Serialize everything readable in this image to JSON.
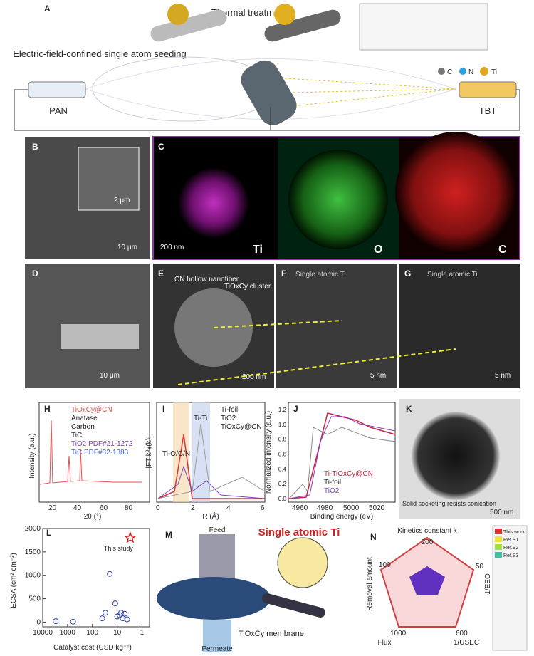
{
  "panel_a": {
    "label": "A",
    "process": "Thermal treatment",
    "seeding": "Electric-field-confined single atom seeding",
    "left_syringe": "PAN",
    "right_syringe": "TBT",
    "legend": [
      "C",
      "N",
      "Ti"
    ]
  },
  "panel_b": {
    "label": "B",
    "inset_scale": "2 μm",
    "scale": "10 μm"
  },
  "panel_c": {
    "label": "C",
    "scale": "200 nm",
    "maps": [
      "Ti",
      "O",
      "C"
    ]
  },
  "panel_d": {
    "label": "D",
    "scale": "10 μm"
  },
  "panel_e": {
    "label": "E",
    "annotations": [
      "CN hollow nanofiber",
      "TiOxCy cluster"
    ],
    "scale": "200 nm"
  },
  "panel_f": {
    "label": "F",
    "title": "Single atomic Ti",
    "scale": "5 nm"
  },
  "panel_g": {
    "label": "G",
    "title": "Single atomic Ti",
    "scale": "5 nm"
  },
  "panel_h": {
    "label": "H",
    "ylabel": "Intensity (a.u.)",
    "xlabel": "2θ (°)",
    "xticks": [
      "20",
      "40",
      "60",
      "80"
    ],
    "legend": [
      "TiOxCy@CN",
      "Anatase",
      "Carbon",
      "TiC",
      "TiO2 PDF#21-1272",
      "TiC PDF#32-1383"
    ]
  },
  "panel_i": {
    "label": "I",
    "ylabel": "|FT k³χ(k)|",
    "xlabel": "R (Å)",
    "xticks": [
      "0",
      "2",
      "4",
      "6"
    ],
    "legend": [
      "Ti-foil",
      "TiO2",
      "TiOxCy@CN"
    ],
    "annotations": [
      "Ti-O/C/N",
      "Ti-Ti"
    ]
  },
  "panel_j": {
    "label": "J",
    "ylabel": "Normalized intensity (a.u.)",
    "xlabel": "Binding energy (eV)",
    "xticks": [
      "4960",
      "4980",
      "5000",
      "5020"
    ],
    "yticks": [
      "0.0",
      "0.2",
      "0.4",
      "0.6",
      "0.8",
      "1.0",
      "1.2"
    ],
    "legend": [
      "Ti-TiOxCy@CN",
      "Ti-foil",
      "TiO2"
    ]
  },
  "panel_k": {
    "label": "K",
    "caption": "Solid socketing resists sonication",
    "scale": "500 nm"
  },
  "panel_l": {
    "label": "L",
    "type": "scatter",
    "ylabel": "ECSA (cm² cm⁻²)",
    "xlabel": "Catalyst cost (USD kg⁻¹)",
    "log_x": true,
    "xlim": [
      10000,
      0.5
    ],
    "ylim": [
      -100,
      2000
    ],
    "xticks": [
      10000,
      1000,
      100,
      10,
      1
    ],
    "yticks": [
      0,
      500,
      1000,
      1500,
      2000
    ],
    "x": [
      3000,
      600,
      40,
      30,
      20,
      12,
      8,
      7,
      6,
      5,
      4,
      10
    ],
    "y": [
      20,
      10,
      80,
      200,
      1030,
      400,
      150,
      200,
      80,
      180,
      60,
      120
    ],
    "highlight": {
      "label": "This study",
      "x": 3,
      "y": 1800
    }
  },
  "panel_m": {
    "label": "M",
    "labels": [
      "Feed",
      "Single atomic Ti",
      "TiOxCy membrane",
      "Permeate"
    ]
  },
  "panel_n": {
    "label": "N",
    "axes": [
      "Kinetics constant k",
      "1/EEO",
      "1/USEC",
      "Flux",
      "Removal amount"
    ],
    "tick_labels": [
      "200",
      "50",
      "600",
      "1000",
      "100"
    ],
    "legend": [
      "This work",
      "Ref.S1",
      "Ref.S2",
      "Ref.S3"
    ]
  }
}
